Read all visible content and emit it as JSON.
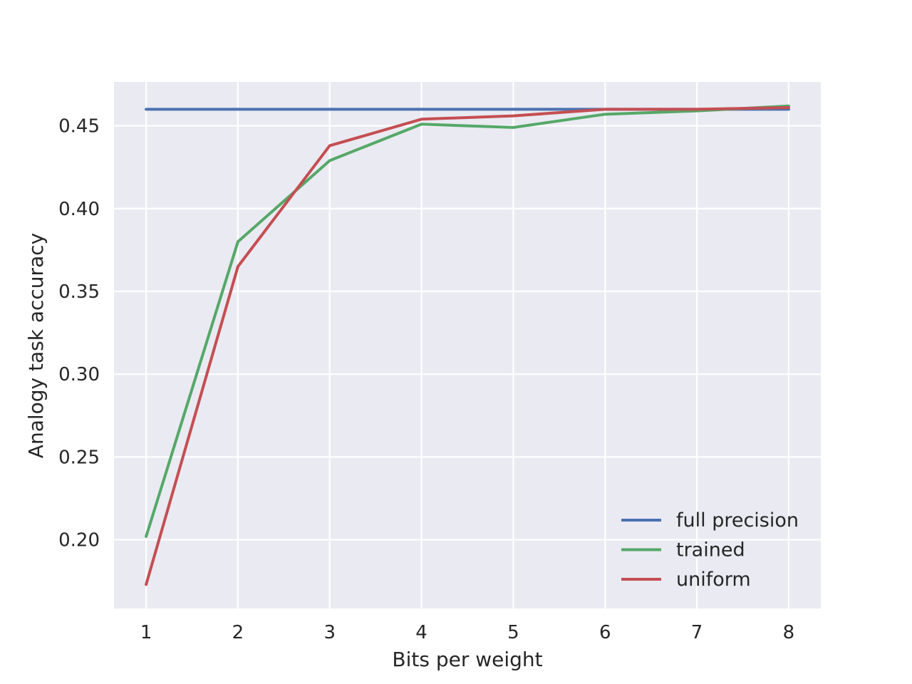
{
  "chart_data": {
    "type": "line",
    "title": "",
    "xlabel": "Bits per weight",
    "ylabel": "Analogy task accuracy",
    "x": [
      1,
      2,
      3,
      4,
      5,
      6,
      7,
      8
    ],
    "xticks": [
      "1",
      "2",
      "3",
      "4",
      "5",
      "6",
      "7",
      "8"
    ],
    "yticks": [
      "0.20",
      "0.25",
      "0.30",
      "0.35",
      "0.40",
      "0.45"
    ],
    "ytick_values": [
      0.2,
      0.25,
      0.3,
      0.35,
      0.4,
      0.45
    ],
    "xlim": [
      0.65,
      8.35
    ],
    "ylim": [
      0.1585,
      0.4765
    ],
    "grid": true,
    "legend_position": "lower-right",
    "series": [
      {
        "name": "full precision",
        "color": "#4c72b0",
        "values": [
          0.46,
          0.46,
          0.46,
          0.46,
          0.46,
          0.46,
          0.46,
          0.46
        ]
      },
      {
        "name": "trained",
        "color": "#55a868",
        "values": [
          0.202,
          0.38,
          0.429,
          0.451,
          0.449,
          0.457,
          0.459,
          0.462
        ]
      },
      {
        "name": "uniform",
        "color": "#c44e52",
        "values": [
          0.173,
          0.365,
          0.438,
          0.454,
          0.456,
          0.46,
          0.46,
          0.461
        ]
      }
    ]
  }
}
